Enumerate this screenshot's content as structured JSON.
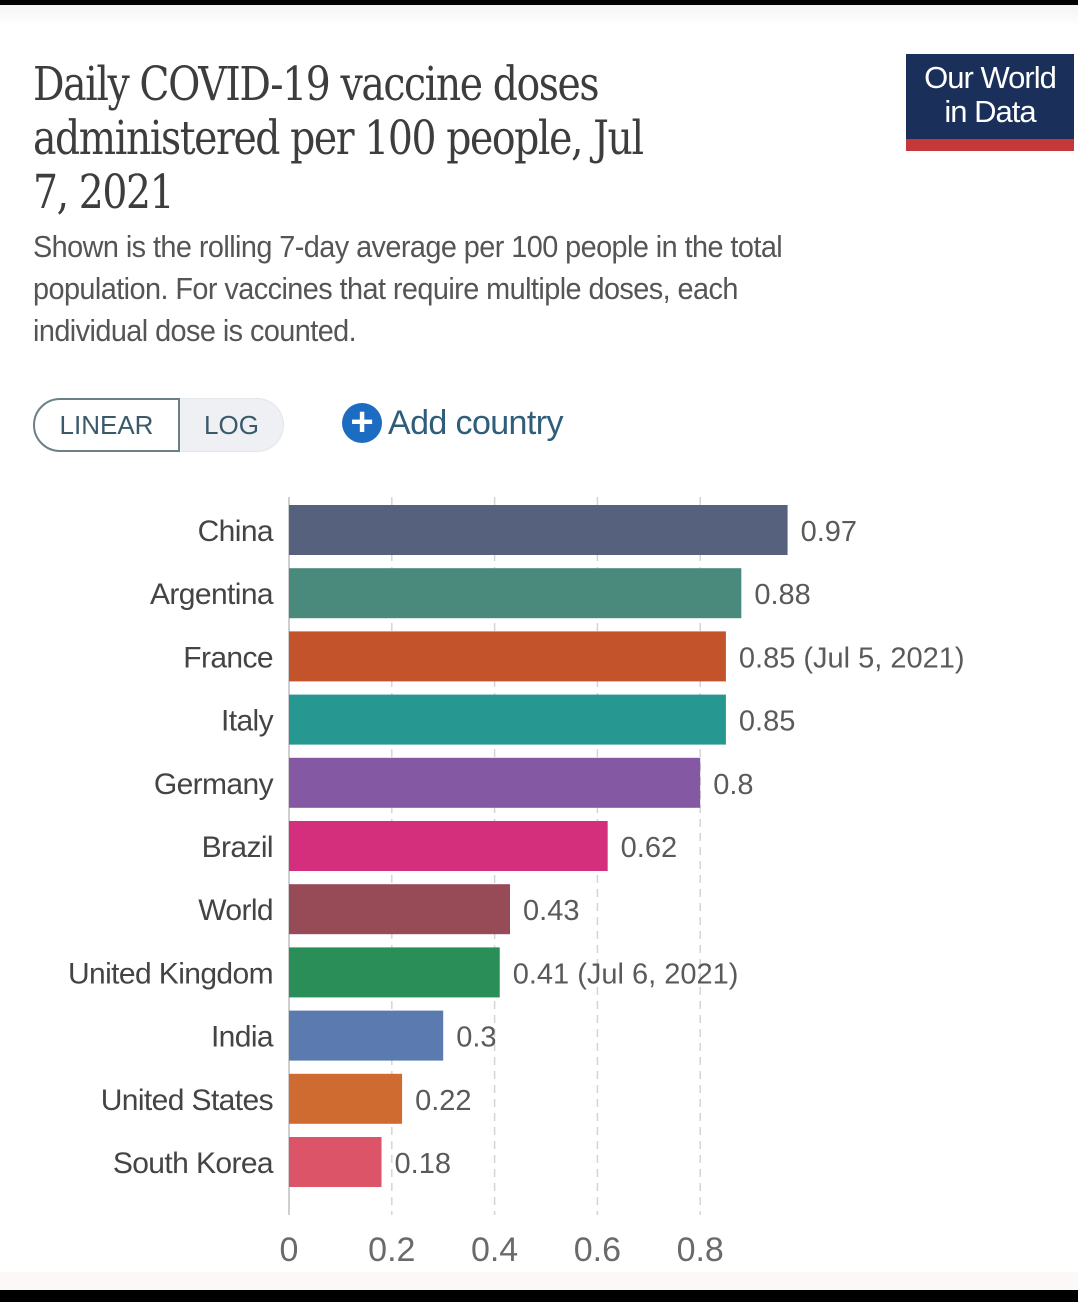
{
  "header": {
    "title": "Daily COVID-19 vaccine doses administered per 100 people, Jul 7, 2021",
    "title_lines": [
      "Daily COVID-19 vaccine doses",
      "administered per 100 people, Jul",
      "7, 2021"
    ],
    "subtitle_lines": [
      "Shown is the rolling 7-day average per 100 people in the total",
      "population. For vaccines that require multiple doses, each",
      "individual dose is counted."
    ],
    "logo_lines": [
      "Our World",
      "in Data"
    ],
    "logo_colors": {
      "background": "#1a2f5a",
      "stripe": "#c5383a"
    }
  },
  "controls": {
    "scale_options": [
      "LINEAR",
      "LOG"
    ],
    "selected_scale": "LINEAR",
    "add_country_label": "Add country",
    "add_country_icon": "plus-circle-icon",
    "accent": "#1c6dc1"
  },
  "chart_data": {
    "type": "bar",
    "orientation": "horizontal",
    "title": "Daily COVID-19 vaccine doses administered per 100 people, Jul 7, 2021",
    "xlabel": "",
    "ylabel": "",
    "xlim": [
      0,
      0.97
    ],
    "xticks": [
      0,
      0.2,
      0.4,
      0.6,
      0.8
    ],
    "xtick_labels": [
      "0",
      "0.2",
      "0.4",
      "0.6",
      "0.8"
    ],
    "grid": "vertical dashed",
    "legend": "none",
    "categories": [
      "China",
      "Argentina",
      "France",
      "Italy",
      "Germany",
      "Brazil",
      "World",
      "United Kingdom",
      "India",
      "United States",
      "South Korea"
    ],
    "values": [
      0.97,
      0.88,
      0.85,
      0.85,
      0.8,
      0.62,
      0.43,
      0.41,
      0.3,
      0.22,
      0.18
    ],
    "value_labels": [
      "0.97",
      "0.88",
      "0.85 (Jul 5, 2021)",
      "0.85",
      "0.8",
      "0.62",
      "0.43",
      "0.41 (Jul 6, 2021)",
      "0.3",
      "0.22",
      "0.18"
    ],
    "colors": [
      "#56627d",
      "#4a8a7d",
      "#c2532b",
      "#279792",
      "#8458a3",
      "#d42f7d",
      "#974b57",
      "#2a8e58",
      "#5b7bb0",
      "#cf6b30",
      "#dc5468"
    ]
  }
}
